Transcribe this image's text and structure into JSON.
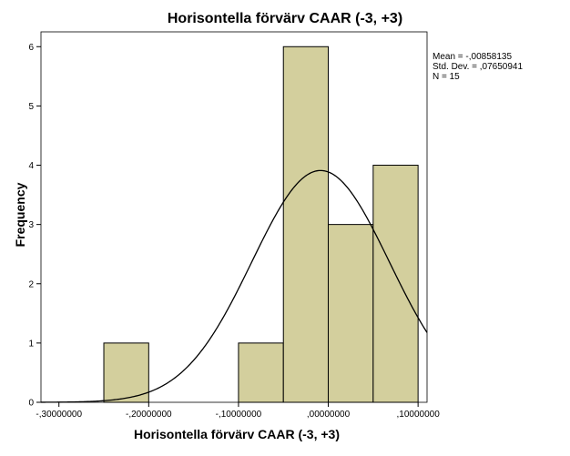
{
  "chart_data": {
    "type": "bar",
    "subtype": "histogram",
    "title": "Horisontella förvärv CAAR (-3, +3)",
    "xlabel": "Horisontella förvärv CAAR (-3, +3)",
    "ylabel": "Frequency",
    "bins": [
      {
        "x0": -0.25,
        "x1": -0.2,
        "count": 1
      },
      {
        "x0": -0.2,
        "x1": -0.15,
        "count": 0
      },
      {
        "x0": -0.15,
        "x1": -0.1,
        "count": 0
      },
      {
        "x0": -0.1,
        "x1": -0.05,
        "count": 1
      },
      {
        "x0": -0.05,
        "x1": 0.0,
        "count": 6
      },
      {
        "x0": 0.0,
        "x1": 0.05,
        "count": 3
      },
      {
        "x0": 0.05,
        "x1": 0.1,
        "count": 4
      }
    ],
    "xlim": [
      -0.32,
      0.11
    ],
    "ylim": [
      0,
      6.25
    ],
    "x_ticks": [
      -0.3,
      -0.2,
      -0.1,
      0.0,
      0.1
    ],
    "x_tick_labels": [
      "-,30000000",
      "-,20000000",
      "-,10000000",
      ",00000000",
      ",10000000"
    ],
    "y_ticks": [
      0,
      1,
      2,
      3,
      4,
      5,
      6
    ],
    "y_tick_labels": [
      "0",
      "1",
      "2",
      "3",
      "4",
      "5",
      "6"
    ],
    "normal_curve": {
      "mean": -0.00858135,
      "std": 0.07650941,
      "n": 15,
      "bin_width": 0.05
    },
    "bar_color": "#d3cf9d",
    "stats": {
      "mean_text": "Mean = -,00858135",
      "std_text": "Std. Dev. = ,07650941",
      "n_text": "N = 15"
    },
    "grid": false,
    "legend": "none"
  }
}
